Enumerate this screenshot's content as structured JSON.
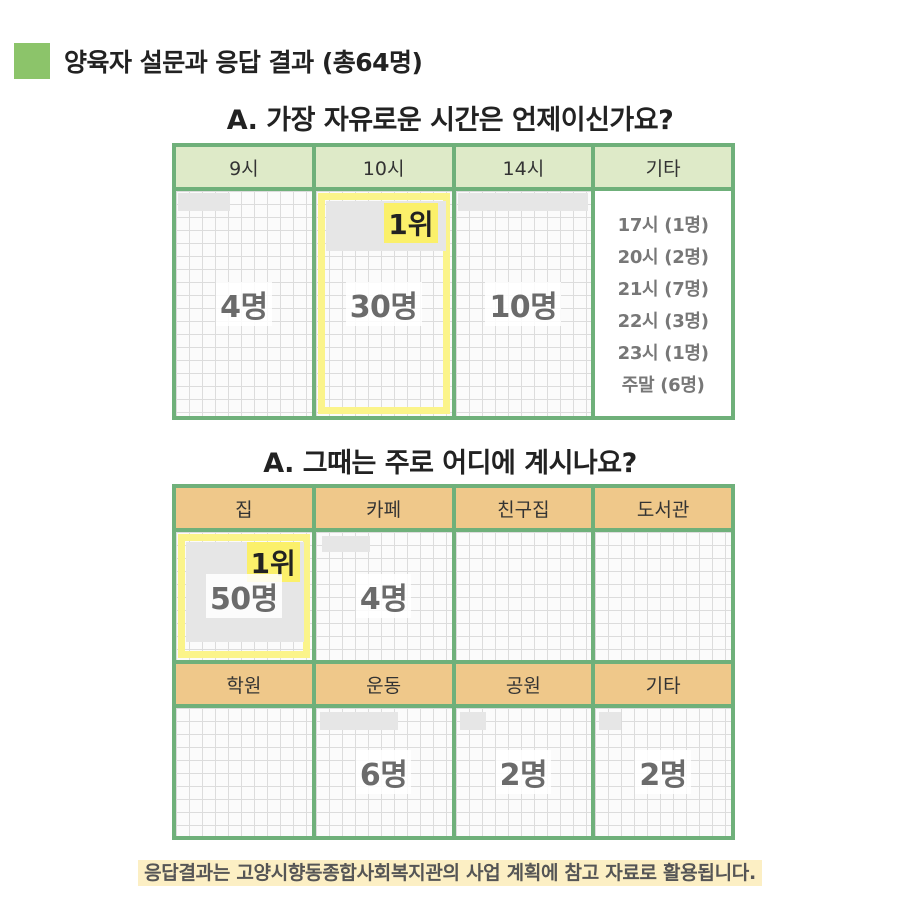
{
  "header": {
    "title": "양육자 설문과 응답 결과 (총64명)"
  },
  "q1": {
    "title": "A. 가장 자유로운 시간은 언제이신가요?",
    "columns": [
      {
        "label": "9시",
        "count": "4명"
      },
      {
        "label": "10시",
        "count": "30명",
        "rank": "1위"
      },
      {
        "label": "14시",
        "count": "10명"
      },
      {
        "label": "기타",
        "items": [
          "17시 (1명)",
          "20시 (2명)",
          "21시 (7명)",
          "22시 (3명)",
          "23시 (1명)",
          "주말 (6명)"
        ]
      }
    ]
  },
  "q2": {
    "title": "A. 그때는 주로 어디에 계시나요?",
    "row1": [
      {
        "label": "집",
        "count": "50명",
        "rank": "1위"
      },
      {
        "label": "카페",
        "count": "4명"
      },
      {
        "label": "친구집",
        "count": ""
      },
      {
        "label": "도서관",
        "count": ""
      }
    ],
    "row2": [
      {
        "label": "학원",
        "count": ""
      },
      {
        "label": "운동",
        "count": "6명"
      },
      {
        "label": "공원",
        "count": "2명"
      },
      {
        "label": "기타",
        "count": "2명"
      }
    ]
  },
  "footer": {
    "text": "응답결과는 고양시향동종합사회복지관의 사업 계획에 참고 자료로 활용됩니다."
  },
  "colors": {
    "accent_green": "#8cc46a",
    "table_border": "#6fb07a",
    "q1_header": "#deeac8",
    "q2_header": "#efc88a",
    "highlight": "#fbf06a",
    "footer_bg": "#fcefc4"
  }
}
